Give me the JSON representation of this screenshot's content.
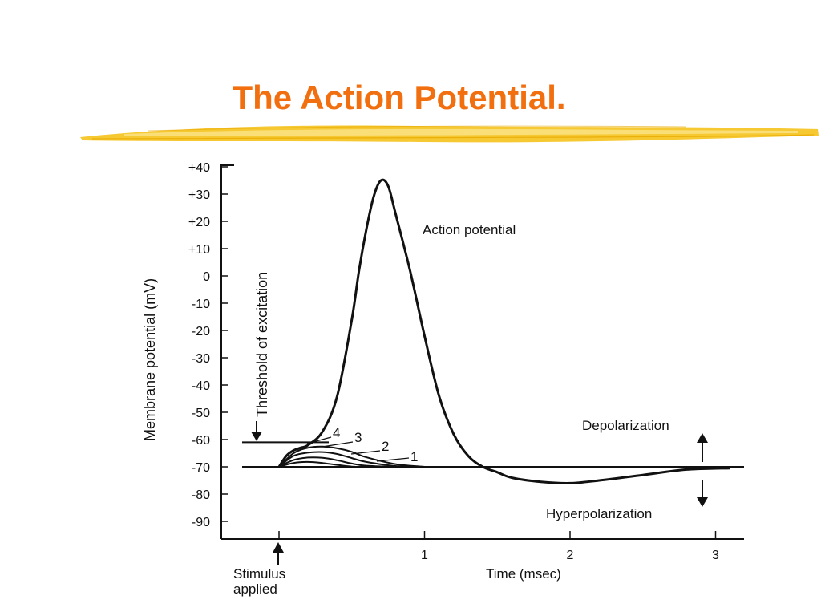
{
  "slide": {
    "title": "The Action Potential.",
    "title_color": "#f26f0f",
    "accent_brush_color": "#f5c21b"
  },
  "chart_data": {
    "type": "line",
    "ylabel": "Membrane potential (mV)",
    "xlabel": "Time (msec)",
    "ylim": [
      -95,
      42
    ],
    "xlim": [
      -0.38,
      3.2
    ],
    "y_ticks": [
      40,
      30,
      20,
      10,
      0,
      -10,
      -20,
      -30,
      -40,
      -50,
      -60,
      -70,
      -80,
      -90
    ],
    "y_tick_labels": [
      "+40",
      "+30",
      "+20",
      "+10",
      "0",
      "-10",
      "-20",
      "-30",
      "-40",
      "-50",
      "-60",
      "-70",
      "-80",
      "-90"
    ],
    "x_ticks": [
      0,
      1,
      2,
      3
    ],
    "x_tick_labels": [
      "",
      "1",
      "2",
      "3"
    ],
    "resting_potential": -70,
    "threshold_potential": -61,
    "series": [
      {
        "name": "Action potential",
        "x": [
          0.0,
          0.05,
          0.1,
          0.15,
          0.2,
          0.3,
          0.4,
          0.5,
          0.55,
          0.6,
          0.65,
          0.7,
          0.75,
          0.8,
          0.9,
          1.0,
          1.1,
          1.2,
          1.3,
          1.4,
          1.5,
          1.6,
          1.8,
          2.0,
          2.2,
          2.5,
          2.8,
          3.1
        ],
        "y": [
          -70,
          -66,
          -64,
          -63,
          -62,
          -57,
          -44,
          -16,
          2,
          17,
          29,
          35,
          33,
          23,
          2,
          -22,
          -44,
          -58,
          -66,
          -70,
          -72,
          -74,
          -75.5,
          -76,
          -75,
          -73,
          -71,
          -70.5
        ]
      },
      {
        "name": "4",
        "x": [
          0.0,
          0.1,
          0.2,
          0.3,
          0.4,
          0.5,
          0.6,
          0.8,
          1.0
        ],
        "y": [
          -70,
          -65,
          -63,
          -62.6,
          -63.2,
          -64.5,
          -66.5,
          -69,
          -70
        ]
      },
      {
        "name": "3",
        "x": [
          0.0,
          0.1,
          0.2,
          0.3,
          0.4,
          0.5,
          0.6,
          0.8,
          1.0
        ],
        "y": [
          -70,
          -66,
          -64.8,
          -64.6,
          -65.3,
          -66.8,
          -68.2,
          -69.7,
          -70
        ]
      },
      {
        "name": "2",
        "x": [
          0.0,
          0.1,
          0.2,
          0.3,
          0.4,
          0.5,
          0.6,
          0.8
        ],
        "y": [
          -70,
          -67.5,
          -66.6,
          -66.7,
          -67.6,
          -68.8,
          -69.6,
          -70
        ]
      },
      {
        "name": "1",
        "x": [
          0.0,
          0.1,
          0.2,
          0.3,
          0.4,
          0.5,
          0.6
        ],
        "y": [
          -70,
          -68.6,
          -68.2,
          -68.6,
          -69.3,
          -69.9,
          -70
        ]
      }
    ],
    "annotations": {
      "action_potential": "Action potential",
      "threshold": "Threshold of excitation",
      "depolarization": "Depolarization",
      "hyperpolarization": "Hyperpolarization",
      "stimulus_line1": "Stimulus",
      "stimulus_line2": "applied",
      "subthreshold_labels": [
        "4",
        "3",
        "2",
        "1"
      ]
    }
  }
}
